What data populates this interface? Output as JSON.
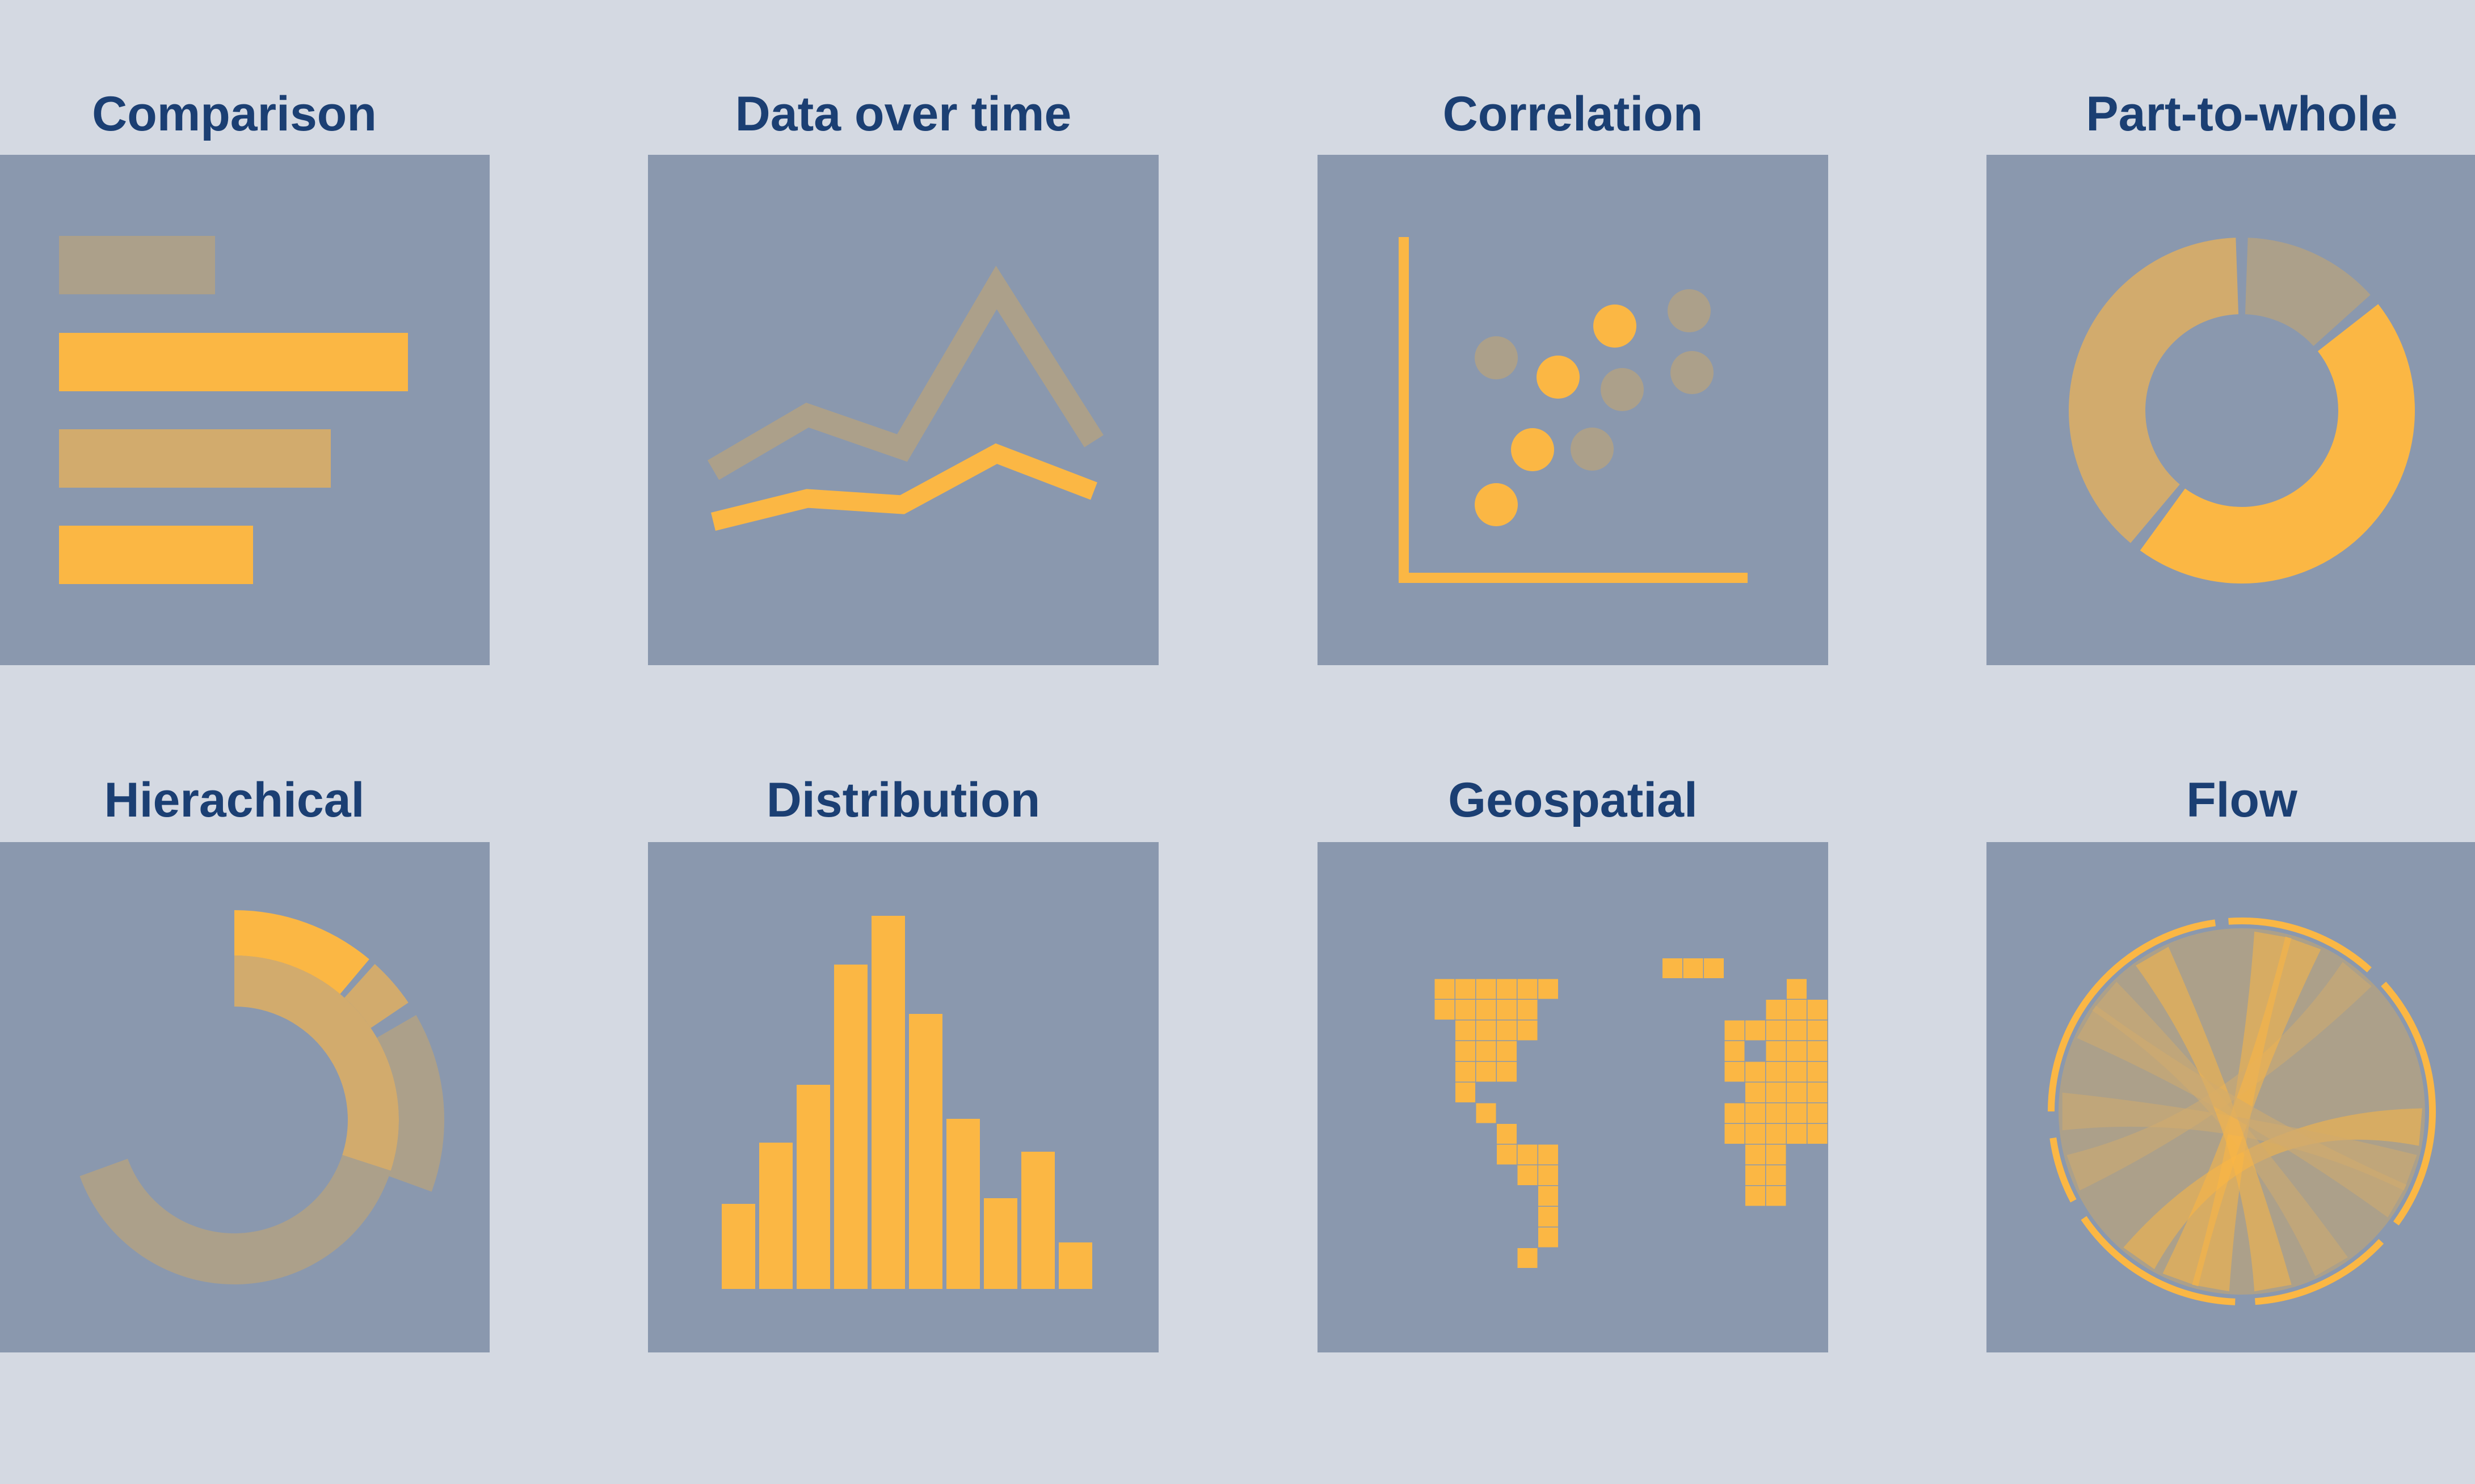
{
  "colors": {
    "background": "#d4d9e2",
    "panel": "#8a98ae",
    "accent": "#fbb744",
    "accent_mid": "#d2ab6d",
    "accent_muted": "#aca08a",
    "title": "#1b3f73"
  },
  "categories": [
    {
      "key": "comparison",
      "title": "Comparison",
      "icon": "horizontal-bar-chart-icon"
    },
    {
      "key": "data_over_time",
      "title": "Data over time",
      "icon": "line-chart-icon"
    },
    {
      "key": "correlation",
      "title": "Correlation",
      "icon": "scatter-plot-icon"
    },
    {
      "key": "part_to_whole",
      "title": "Part-to-whole",
      "icon": "donut-chart-icon"
    },
    {
      "key": "hierarchical",
      "title": "Hierachical",
      "icon": "sunburst-chart-icon"
    },
    {
      "key": "distribution",
      "title": "Distribution",
      "icon": "histogram-icon"
    },
    {
      "key": "geospatial",
      "title": "Geospatial",
      "icon": "world-map-icon"
    },
    {
      "key": "flow",
      "title": "Flow",
      "icon": "chord-diagram-icon"
    }
  ]
}
